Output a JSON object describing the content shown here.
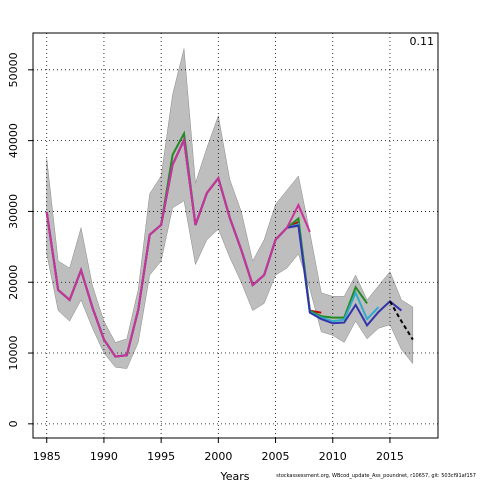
{
  "chart_data": {
    "type": "line",
    "x_label": "Years",
    "annotation": "0.11",
    "footer": "stockassessment.org,  WBcod_update_Ass_poundnet,  r10657,  git: 503cf91af157",
    "x": [
      1985,
      1986,
      1987,
      1988,
      1989,
      1990,
      1991,
      1992,
      1993,
      1994,
      1995,
      1996,
      1997,
      1998,
      1999,
      2000,
      2001,
      2002,
      2003,
      2004,
      2005,
      2006,
      2007,
      2008,
      2009,
      2010,
      2011,
      2012,
      2013,
      2014,
      2015,
      2016,
      2017
    ],
    "xlim": [
      1983.8,
      2019.2
    ],
    "xticks": [
      1985,
      1990,
      1995,
      2000,
      2005,
      2010,
      2015
    ],
    "ylim": [
      -2000,
      55200
    ],
    "yticks": [
      0,
      10000,
      20000,
      30000,
      40000,
      50000
    ],
    "grid": true,
    "band": {
      "color": "#bebebe",
      "upper": [
        37500,
        23000,
        22000,
        27700,
        19500,
        14500,
        11500,
        12000,
        19000,
        32500,
        35000,
        46500,
        53000,
        34000,
        39000,
        43500,
        34500,
        30000,
        23000,
        26000,
        31000,
        33000,
        35000,
        27000,
        18500,
        18000,
        18000,
        21000,
        17500,
        19500,
        21500,
        17500,
        16500
      ],
      "lower": [
        24000,
        16000,
        14500,
        17500,
        13500,
        10000,
        8000,
        7800,
        11500,
        21000,
        23000,
        30500,
        31500,
        22500,
        26000,
        27500,
        23500,
        20000,
        16000,
        17000,
        21000,
        22000,
        24000,
        19000,
        13000,
        12500,
        11500,
        14500,
        12000,
        13500,
        14000,
        10500,
        8500
      ]
    },
    "series": [
      {
        "color": "#cc0000",
        "values": [
          29900,
          18900,
          17500,
          21700,
          16400,
          11900,
          9500,
          9700,
          16100,
          26700,
          28100,
          36600,
          40100,
          28100,
          32600,
          34700,
          29100,
          24600,
          19600,
          21000,
          26000,
          27700,
          28500,
          16000,
          15700,
          null,
          null,
          null,
          null,
          null,
          null,
          null,
          null
        ]
      },
      {
        "color": "#228b22",
        "values": [
          29900,
          18900,
          17500,
          21700,
          16400,
          11900,
          9500,
          9700,
          16100,
          26700,
          28100,
          38000,
          41000,
          28100,
          32600,
          34700,
          29100,
          24600,
          19600,
          21000,
          26000,
          27700,
          29000,
          16000,
          15200,
          15000,
          15000,
          19300,
          17000,
          null,
          null,
          null,
          null
        ]
      },
      {
        "color": "#33aacc",
        "values": [
          29900,
          18900,
          17500,
          21700,
          16400,
          11900,
          9500,
          9700,
          16100,
          26700,
          28100,
          36600,
          40100,
          28100,
          32600,
          34700,
          29100,
          24600,
          19600,
          21000,
          26000,
          27700,
          28200,
          15800,
          15000,
          14500,
          14700,
          18500,
          14800,
          16500,
          null,
          null,
          null
        ]
      },
      {
        "color": "#3333aa",
        "values": [
          29900,
          18900,
          17500,
          21700,
          16400,
          11900,
          9500,
          9700,
          16100,
          26700,
          28100,
          36600,
          40100,
          28100,
          32600,
          34700,
          29100,
          24600,
          19600,
          21000,
          26000,
          27700,
          28000,
          15700,
          14800,
          14200,
          14300,
          16800,
          13900,
          15800,
          17300,
          16000,
          null
        ]
      },
      {
        "color": "#000000",
        "dash": true,
        "values": [
          null,
          null,
          null,
          null,
          null,
          null,
          null,
          null,
          null,
          null,
          null,
          null,
          null,
          null,
          null,
          null,
          null,
          null,
          null,
          null,
          null,
          null,
          null,
          null,
          null,
          null,
          null,
          null,
          null,
          null,
          17300,
          14500,
          11900
        ]
      },
      {
        "color": "#cc3399",
        "values": [
          29900,
          18900,
          17500,
          21700,
          16400,
          11900,
          9500,
          9700,
          16100,
          26700,
          28100,
          36600,
          40100,
          28100,
          32600,
          34700,
          29100,
          24600,
          19600,
          21000,
          26000,
          27700,
          30900,
          27100,
          null,
          null,
          null,
          null,
          null,
          null,
          null,
          null,
          null
        ]
      }
    ]
  }
}
